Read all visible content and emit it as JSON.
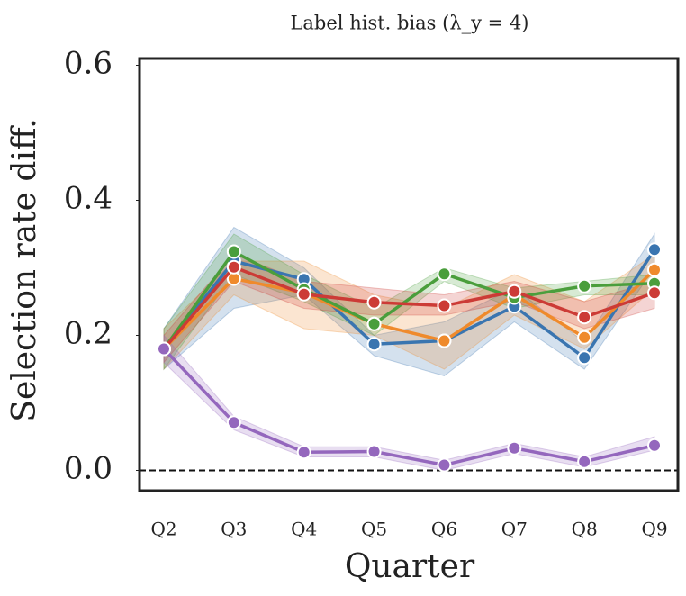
{
  "chart_data": {
    "type": "line",
    "title": "Label hist. bias (λ_y = 4)",
    "xlabel": "Quarter",
    "ylabel": "Selection rate diff.",
    "categories": [
      "Q2",
      "Q3",
      "Q4",
      "Q5",
      "Q6",
      "Q7",
      "Q8",
      "Q9"
    ],
    "ylim": [
      -0.03,
      0.61
    ],
    "yticks": [
      {
        "value": 0,
        "label": "0.0"
      },
      0.2,
      0.4,
      0.6
    ],
    "hline": 0,
    "series": [
      {
        "color": "#3a75b0",
        "values": [
          0.18,
          0.31,
          0.283,
          0.187,
          0.192,
          0.243,
          0.167,
          0.327
        ],
        "lower": [
          0.15,
          0.24,
          0.26,
          0.17,
          0.14,
          0.22,
          0.15,
          0.3
        ],
        "upper": [
          0.21,
          0.36,
          0.3,
          0.2,
          0.22,
          0.27,
          0.19,
          0.35
        ]
      },
      {
        "color": "#ef8a2c",
        "values": [
          0.18,
          0.284,
          0.263,
          0.217,
          0.192,
          0.26,
          0.197,
          0.297
        ],
        "lower": [
          0.15,
          0.26,
          0.21,
          0.2,
          0.15,
          0.23,
          0.18,
          0.27
        ],
        "upper": [
          0.21,
          0.31,
          0.31,
          0.26,
          0.24,
          0.29,
          0.25,
          0.32
        ]
      },
      {
        "color": "#4a9e3c",
        "values": [
          0.18,
          0.324,
          0.268,
          0.217,
          0.291,
          0.256,
          0.273,
          0.277
        ],
        "lower": [
          0.15,
          0.29,
          0.25,
          0.2,
          0.28,
          0.24,
          0.26,
          0.26
        ],
        "upper": [
          0.21,
          0.35,
          0.29,
          0.24,
          0.3,
          0.27,
          0.28,
          0.29
        ]
      },
      {
        "color": "#cc3b36",
        "values": [
          0.18,
          0.301,
          0.261,
          0.249,
          0.244,
          0.265,
          0.227,
          0.263
        ],
        "lower": [
          0.16,
          0.28,
          0.24,
          0.23,
          0.23,
          0.25,
          0.21,
          0.24
        ],
        "upper": [
          0.2,
          0.32,
          0.28,
          0.27,
          0.26,
          0.28,
          0.25,
          0.28
        ]
      },
      {
        "color": "#9467bd",
        "values": [
          0.18,
          0.071,
          0.027,
          0.028,
          0.008,
          0.033,
          0.013,
          0.037
        ],
        "lower": [
          0.16,
          0.06,
          0.02,
          0.02,
          0,
          0.025,
          0.005,
          0.03
        ],
        "upper": [
          0.2,
          0.08,
          0.035,
          0.035,
          0.015,
          0.04,
          0.02,
          0.05
        ]
      }
    ]
  }
}
